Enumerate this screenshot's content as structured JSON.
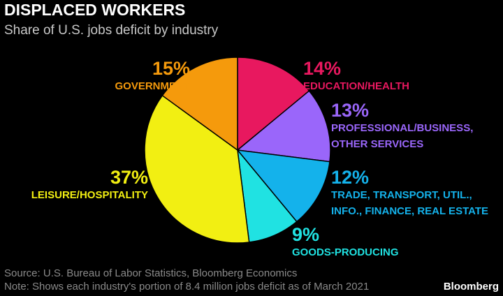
{
  "chart_data": {
    "type": "pie",
    "title": "DISPLACED WORKERS",
    "subtitle": "Share of U.S. jobs deficit by industry",
    "categories": [
      [
        "EDUCATION/HEALTH"
      ],
      [
        "PROFESSIONAL/BUSINESS,",
        "OTHER SERVICES"
      ],
      [
        "TRADE, TRANSPORT, UTIL.,",
        "INFO., FINANCE, REAL ESTATE"
      ],
      [
        "GOODS-PRODUCING"
      ],
      [
        "LEISURE/HOSPITALITY"
      ],
      [
        "GOVERNMENT"
      ]
    ],
    "values": [
      14,
      13,
      12,
      9,
      37,
      15
    ],
    "value_labels": [
      "14%",
      "13%",
      "12%",
      "9%",
      "37%",
      "15%"
    ],
    "colors": [
      "#e8185f",
      "#9a66fa",
      "#14b2eb",
      "#20e2e2",
      "#f2ef12",
      "#f59a0c"
    ],
    "source": "Source: U.S. Bureau of Labor Statistics, Bloomberg Economics",
    "note": "Note: Shows each industry's portion of 8.4 million jobs deficit as of March 2021",
    "brand": "Bloomberg"
  }
}
